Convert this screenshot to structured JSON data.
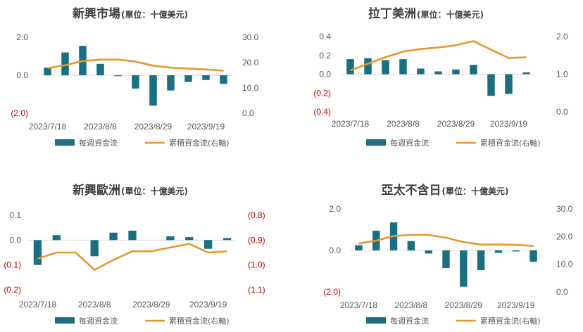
{
  "colors": {
    "bar": "#1a6f80",
    "line": "#e8962f",
    "grid": "#d9d9d9",
    "negative_label": "#c00000"
  },
  "chart_data": [
    {
      "type": "bar+line",
      "title": "新興市場",
      "unit": "(單位：十億美元)",
      "x": [
        "2023/7/18",
        "2023/7/25",
        "2023/8/1",
        "2023/8/8",
        "2023/8/15",
        "2023/8/22",
        "2023/8/29",
        "2023/9/5",
        "2023/9/12",
        "2023/9/19",
        "2023/9/26"
      ],
      "x_tick_labels": [
        "2023/7/18",
        "2023/8/8",
        "2023/8/29",
        "2023/9/19"
      ],
      "x_tick_index": [
        0,
        3,
        6,
        9
      ],
      "series": [
        {
          "name": "每週資金流",
          "kind": "bar",
          "axis": "left",
          "values": [
            0.4,
            1.2,
            1.55,
            0.6,
            -0.05,
            -0.7,
            -1.6,
            -0.8,
            -0.35,
            -0.25,
            -0.45
          ]
        },
        {
          "name": "累積資金流(右軸)",
          "kind": "line",
          "axis": "right",
          "values": [
            17.8,
            19.0,
            20.6,
            21.2,
            21.2,
            20.4,
            18.8,
            18.0,
            17.6,
            17.3,
            16.8
          ]
        }
      ],
      "left_axis": {
        "ticks": [
          2.0,
          0.0,
          -2.0
        ],
        "labels": [
          "2.0",
          "0.0",
          "(2.0)"
        ],
        "range": [
          -2.0,
          2.0
        ]
      },
      "right_axis": {
        "ticks": [
          30,
          20,
          10,
          0
        ],
        "labels": [
          "30.0",
          "20.0",
          "10.0",
          "0.0"
        ],
        "range": [
          0,
          30
        ]
      },
      "legend": [
        "每週資金流",
        "累積資金流(右軸)"
      ]
    },
    {
      "type": "bar+line",
      "title": "拉丁美洲",
      "unit": "(單位：十億美元)",
      "x": [
        "2023/7/18",
        "2023/7/25",
        "2023/8/1",
        "2023/8/8",
        "2023/8/15",
        "2023/8/22",
        "2023/8/29",
        "2023/9/5",
        "2023/9/12",
        "2023/9/19",
        "2023/9/26"
      ],
      "x_tick_labels": [
        "2023/7/18",
        "2023/8/8",
        "2023/8/29",
        "2023/9/19"
      ],
      "x_tick_index": [
        0,
        3,
        6,
        9
      ],
      "series": [
        {
          "name": "每週資金流",
          "kind": "bar",
          "axis": "left",
          "values": [
            0.16,
            0.17,
            0.15,
            0.16,
            0.06,
            0.03,
            0.05,
            0.1,
            -0.23,
            -0.21,
            0.02
          ]
        },
        {
          "name": "累積資金流(右軸)",
          "kind": "line",
          "axis": "right",
          "values": [
            1.1,
            1.28,
            1.45,
            1.6,
            1.67,
            1.71,
            1.77,
            1.88,
            1.65,
            1.43,
            1.45
          ]
        }
      ],
      "left_axis": {
        "ticks": [
          0.4,
          0.2,
          0.0,
          -0.2,
          -0.4
        ],
        "labels": [
          "0.4",
          "0.2",
          "0.0",
          "(0.2)",
          "(0.4)"
        ],
        "range": [
          -0.4,
          0.4
        ]
      },
      "right_axis": {
        "ticks": [
          2.0,
          1.0,
          0.0
        ],
        "labels": [
          "2.0",
          "1.0",
          "0.0"
        ],
        "range": [
          0,
          2.0
        ]
      },
      "legend": [
        "每週資金流",
        "累積資金流(右軸)"
      ]
    },
    {
      "type": "bar+line",
      "title": "新興歐洲",
      "unit": "(單位：十億美元)",
      "x": [
        "2023/7/18",
        "2023/7/25",
        "2023/8/1",
        "2023/8/8",
        "2023/8/15",
        "2023/8/22",
        "2023/8/29",
        "2023/9/5",
        "2023/9/12",
        "2023/9/19",
        "2023/9/26"
      ],
      "x_tick_labels": [
        "2023/7/18",
        "2023/8/8",
        "2023/8/29",
        "2023/9/19"
      ],
      "x_tick_index": [
        0,
        3,
        6,
        9
      ],
      "series": [
        {
          "name": "每週資金流",
          "kind": "bar",
          "axis": "left",
          "values": [
            -0.1,
            0.02,
            0.0,
            -0.065,
            0.03,
            0.038,
            0.0,
            0.015,
            0.012,
            -0.035,
            0.008
          ]
        },
        {
          "name": "累積資金流(右軸)",
          "kind": "line",
          "axis": "right",
          "values": [
            -0.975,
            -0.95,
            -0.95,
            -1.02,
            -0.98,
            -0.945,
            -0.945,
            -0.93,
            -0.915,
            -0.95,
            -0.945
          ]
        }
      ],
      "left_axis": {
        "ticks": [
          0.1,
          0.0,
          -0.1,
          -0.2
        ],
        "labels": [
          "0.1",
          "0.0",
          "(0.1)",
          "(0.2)"
        ],
        "range": [
          -0.2,
          0.1
        ]
      },
      "right_axis": {
        "ticks": [
          -0.8,
          -0.9,
          -1.0,
          -1.1
        ],
        "labels": [
          "(0.8)",
          "(0.9)",
          "(1.0)",
          "(1.1)"
        ],
        "range": [
          -1.1,
          -0.8
        ]
      },
      "legend": [
        "每週資金流",
        "累積資金流(右軸)"
      ]
    },
    {
      "type": "bar+line",
      "title": "亞太不含日",
      "unit": "(單位：十億美元)",
      "x": [
        "2023/7/18",
        "2023/7/25",
        "2023/8/1",
        "2023/8/8",
        "2023/8/15",
        "2023/8/22",
        "2023/8/29",
        "2023/9/5",
        "2023/9/12",
        "2023/9/19",
        "2023/9/26"
      ],
      "x_tick_labels": [
        "2023/7/18",
        "2023/8/8",
        "2023/8/29",
        "2023/9/19"
      ],
      "x_tick_index": [
        0,
        3,
        6,
        9
      ],
      "series": [
        {
          "name": "每週資金流",
          "kind": "bar",
          "axis": "left",
          "values": [
            0.25,
            0.95,
            1.35,
            0.45,
            -0.15,
            -0.85,
            -1.75,
            -0.95,
            -0.12,
            -0.05,
            -0.55
          ]
        },
        {
          "name": "累積資金流(右軸)",
          "kind": "line",
          "axis": "right",
          "values": [
            17.5,
            18.5,
            20.2,
            20.6,
            20.6,
            19.6,
            18.0,
            17.1,
            17.1,
            17.0,
            16.6
          ]
        }
      ],
      "left_axis": {
        "ticks": [
          2.0,
          0.0,
          -2.0
        ],
        "labels": [
          "2.0",
          "0.0",
          "(2.0)"
        ],
        "range": [
          -2.0,
          2.0
        ]
      },
      "right_axis": {
        "ticks": [
          30,
          20,
          10,
          0
        ],
        "labels": [
          "30.0",
          "20.0",
          "10.0",
          "0.0"
        ],
        "range": [
          0,
          30
        ]
      },
      "legend": [
        "每週資金流",
        "累積資金流(右軸)"
      ]
    }
  ]
}
